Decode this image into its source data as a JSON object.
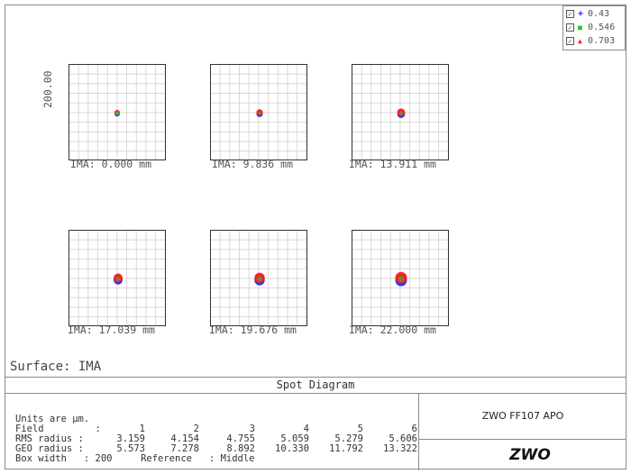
{
  "chart_data": {
    "type": "scatter",
    "title": "Spot Diagram",
    "surface_label": "Surface: IMA",
    "y_axis_label": "200.00",
    "legend": [
      {
        "marker": "+",
        "value": "0.43",
        "color": "#1c2bff",
        "checked": true
      },
      {
        "marker": "■",
        "value": "0.546",
        "color": "#2ec62e",
        "checked": true
      },
      {
        "marker": "▲",
        "value": "0.703",
        "color": "#ff1a1a",
        "checked": true
      }
    ],
    "fields": [
      {
        "label": "IMA: 0.000 mm",
        "rms": 3.159,
        "geo": 5.573
      },
      {
        "label": "IMA: 9.836 mm",
        "rms": 4.154,
        "geo": 7.278
      },
      {
        "label": "IMA: 13.911 mm",
        "rms": 4.755,
        "geo": 8.892
      },
      {
        "label": "IMA: 17.039 mm",
        "rms": 5.059,
        "geo": 10.33
      },
      {
        "label": "IMA: 19.676 mm",
        "rms": 5.279,
        "geo": 11.792
      },
      {
        "label": "IMA: 22.000 mm",
        "rms": 5.606,
        "geo": 13.322
      }
    ],
    "box_width": 200
  },
  "table": {
    "units": "Units are µm.",
    "field_label": "Field         :",
    "field_numbers": [
      "1",
      "2",
      "3",
      "4",
      "5",
      "6"
    ],
    "rms_label": "RMS radius :",
    "rms_values": [
      "3.159",
      "4.154",
      "4.755",
      "5.059",
      "5.279",
      "5.606"
    ],
    "geo_label": "GEO radius :",
    "geo_values": [
      "5.573",
      "7.278",
      "8.892",
      "10.330",
      "11.792",
      "13.322"
    ],
    "box_line": "Box width   : 200     Reference   : Middle"
  },
  "lens_name": "ZWO FF107 APO",
  "logo_text": "ZWO"
}
